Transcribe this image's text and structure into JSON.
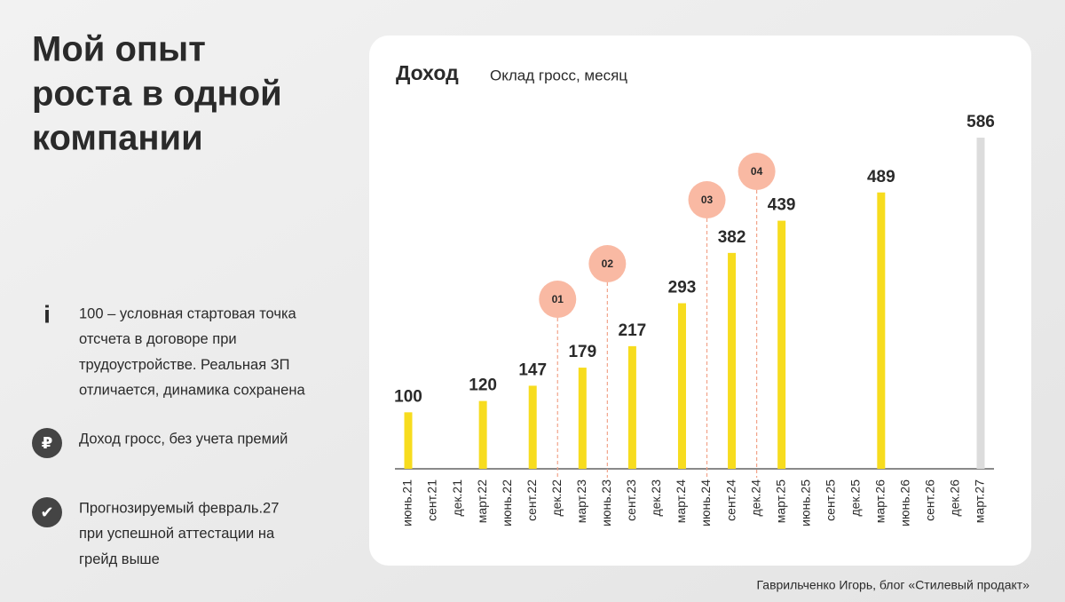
{
  "slide": {
    "title_lines": [
      "Мой опыт",
      "роста в одной",
      "компании"
    ],
    "notes": [
      {
        "icon": "i",
        "lines": [
          "100 – условная стартовая точка",
          "отсчета в договоре при",
          "трудоустройстве. Реальная ЗП",
          "отличается, динамика сохранена"
        ]
      },
      {
        "icon": "₽",
        "lines": [
          "Доход гросс, без учета премий"
        ]
      },
      {
        "icon": "✔",
        "lines": [
          "Прогнозируемый февраль.27",
          "при успешной аттестации на",
          "грейд выше"
        ]
      }
    ],
    "footer": "Гаврильченко Игорь, блог «Стилевый продакт»"
  },
  "chart_data": {
    "type": "bar",
    "title": "Доход",
    "subtitle": "Оклад гросс, месяц",
    "categories": [
      "июнь.21",
      "сент.21",
      "дек.21",
      "март.22",
      "июнь.22",
      "сент.22",
      "дек.22",
      "март.23",
      "июнь.23",
      "сент.23",
      "дек.23",
      "март.24",
      "июнь.24",
      "сент.24",
      "дек.24",
      "март.25",
      "июнь.25",
      "сент.25",
      "дек.25",
      "март.26",
      "июнь.26",
      "сент.26",
      "дек.26",
      "март.27"
    ],
    "values": [
      100,
      null,
      null,
      120,
      null,
      147,
      null,
      179,
      null,
      217,
      null,
      293,
      null,
      382,
      null,
      439,
      null,
      null,
      null,
      489,
      null,
      null,
      null,
      586
    ],
    "colors": [
      "#f7dc1e",
      null,
      null,
      "#f7dc1e",
      null,
      "#f7dc1e",
      null,
      "#f7dc1e",
      null,
      "#f7dc1e",
      null,
      "#f7dc1e",
      null,
      "#f7dc1e",
      null,
      "#f7dc1e",
      null,
      null,
      null,
      "#f7dc1e",
      null,
      null,
      null,
      "#dcdcdc"
    ],
    "annotations": [
      {
        "category": "дек.22",
        "label": "01"
      },
      {
        "category": "июнь.23",
        "label": "02"
      },
      {
        "category": "июнь.24",
        "label": "03"
      },
      {
        "category": "дек.24",
        "label": "04"
      }
    ]
  }
}
